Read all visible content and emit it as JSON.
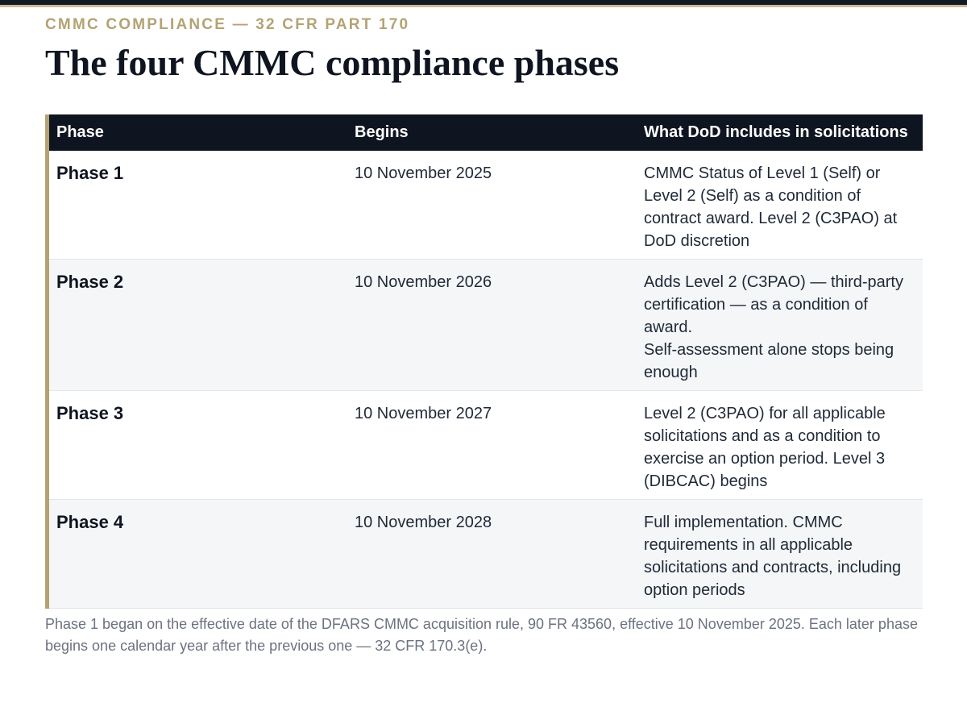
{
  "kicker": "CMMC COMPLIANCE — 32 CFR PART 170",
  "title": "The four CMMC compliance phases",
  "table": {
    "headers": {
      "phase": "Phase",
      "begins": "Begins",
      "description": "What DoD includes in solicitations"
    },
    "rows": [
      {
        "phase": "Phase 1",
        "begins": "10 November 2025",
        "description": "CMMC Status of Level 1 (Self) or Level 2 (Self) as a condition of contract award. Level 2 (C3PAO) at DoD discretion"
      },
      {
        "phase": "Phase 2",
        "begins": "10 November 2026",
        "description": "Adds Level 2 (C3PAO) — third-party certification — as a condition of award.\nSelf-assessment alone stops being enough"
      },
      {
        "phase": "Phase 3",
        "begins": "10 November 2027",
        "description": "Level 2 (C3PAO) for all applicable solicitations and as a condition to exercise an option period. Level 3 (DIBCAC) begins"
      },
      {
        "phase": "Phase 4",
        "begins": "10 November 2028",
        "description": "Full implementation. CMMC requirements in all applicable solicitations and contracts, including option periods"
      }
    ]
  },
  "footnote": "Phase 1 began on the effective date of the DFARS CMMC acquisition rule, 90 FR 43560, effective 10 November 2025. Each later phase begins one calendar year after the previous one — 32 CFR 170.3(e).",
  "colors": {
    "accent": "#b3a374",
    "header_bg": "#0f1520",
    "zebra_bg": "#f4f6f8",
    "muted_text": "#6b7280"
  }
}
